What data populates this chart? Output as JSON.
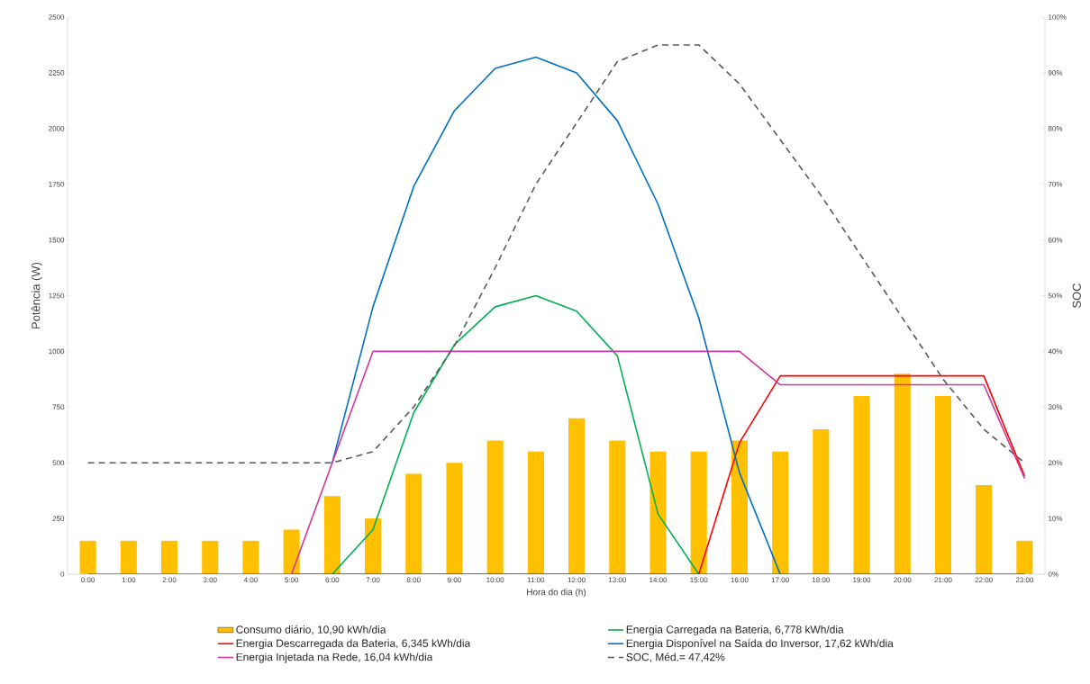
{
  "chart_data": {
    "type": "bar",
    "xlabel": "Hora do dia (h)",
    "ylabel": "Potência (W)",
    "y2label": "SOC",
    "categories": [
      "0:00",
      "1:00",
      "2:00",
      "3:00",
      "4:00",
      "5:00",
      "6:00",
      "7:00",
      "8:00",
      "9:00",
      "10:00",
      "11:00",
      "12:00",
      "13:00",
      "14:00",
      "15:00",
      "16:00",
      "17:00",
      "18:00",
      "19:00",
      "20:00",
      "21:00",
      "22:00",
      "23:00"
    ],
    "ylim": [
      0,
      2500
    ],
    "yticks": [
      0,
      250,
      500,
      750,
      1000,
      1250,
      1500,
      1750,
      2000,
      2250,
      2500
    ],
    "y2lim": [
      0,
      100
    ],
    "y2ticks": [
      {
        "value": 0,
        "label": "0%"
      },
      {
        "value": 10,
        "label": "10%"
      },
      {
        "value": 20,
        "label": "20%"
      },
      {
        "value": 30,
        "label": "30%"
      },
      {
        "value": 40,
        "label": "40%"
      },
      {
        "value": 50,
        "label": "50%"
      },
      {
        "value": 60,
        "label": "60%"
      },
      {
        "value": 70,
        "label": "70%"
      },
      {
        "value": 80,
        "label": "80%"
      },
      {
        "value": 90,
        "label": "90%"
      },
      {
        "value": 100,
        "label": "100%"
      }
    ],
    "grid": false,
    "legend": "bottom",
    "marker": "none",
    "series": [
      {
        "name": "Consumo diário, 10,90 kWh/dia",
        "color": "#ffc000",
        "values": [
          150,
          150,
          150,
          150,
          150,
          200,
          350,
          250,
          450,
          500,
          600,
          550,
          700,
          600,
          550,
          550,
          600,
          550,
          650,
          800,
          900,
          800,
          400,
          150
        ]
      },
      {
        "name": "Energia Carregada na Bateria,  6,778 kWh/dia",
        "type": "line",
        "color": "#00b050",
        "line_style": "solid",
        "values": [
          null,
          null,
          null,
          null,
          null,
          null,
          0,
          200,
          725,
          1030,
          1200,
          1250,
          1180,
          980,
          270,
          0,
          0,
          0,
          null,
          null,
          null,
          null,
          null,
          null
        ]
      },
      {
        "name": "Energia Descarregada da Bateria,  6,345 kWh/dia",
        "type": "line",
        "color": "#ff0000",
        "line_style": "solid",
        "values": [
          null,
          null,
          null,
          null,
          null,
          0,
          0,
          0,
          0,
          0,
          0,
          0,
          0,
          0,
          0,
          0,
          590,
          890,
          890,
          890,
          890,
          890,
          890,
          440
        ]
      },
      {
        "name": "Energia Disponível na Saída do Inversor,  17,62 kWh/dia",
        "type": "line",
        "color": "#0070c0",
        "line_style": "solid",
        "values": [
          null,
          null,
          null,
          null,
          null,
          null,
          500,
          1200,
          1740,
          2080,
          2270,
          2320,
          2250,
          2035,
          1660,
          1150,
          455,
          0,
          0,
          0,
          0,
          0,
          0,
          0
        ]
      },
      {
        "name": "Energia Injetada na Rede,  16,04 kWh/dia",
        "type": "line",
        "color": "#d0369c",
        "line_style": "solid",
        "values": [
          0,
          0,
          0,
          0,
          0,
          0,
          500,
          1000,
          1000,
          1000,
          1000,
          1000,
          1000,
          1000,
          1000,
          1000,
          1000,
          850,
          850,
          850,
          850,
          850,
          850,
          430
        ]
      },
      {
        "name": "SOC, Méd.= 47,42%",
        "type": "line",
        "color": "#595959",
        "line_style": "dashed",
        "axis": "y2",
        "values": [
          20,
          20,
          20,
          20,
          20,
          20,
          20,
          22,
          30,
          41,
          55,
          70,
          81,
          92,
          95,
          95,
          88,
          78,
          68,
          57,
          46,
          35,
          26,
          20
        ]
      }
    ]
  }
}
